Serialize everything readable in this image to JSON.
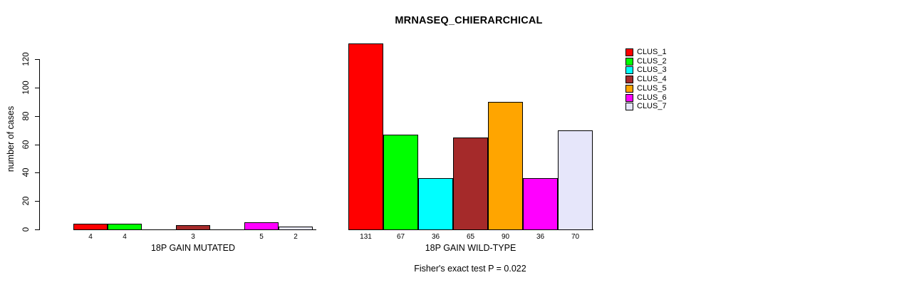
{
  "chart_data": {
    "type": "bar",
    "title": "MRNASEQ_CHIERARCHICAL",
    "ylabel": "number of cases",
    "ylim": [
      0,
      120
    ],
    "yticks": [
      0,
      20,
      40,
      60,
      80,
      100,
      120
    ],
    "grid": false,
    "legend_position": "right",
    "series": [
      "CLUS_1",
      "CLUS_2",
      "CLUS_3",
      "CLUS_4",
      "CLUS_5",
      "CLUS_6",
      "CLUS_7"
    ],
    "colors": [
      "#FF0000",
      "#00FF00",
      "#00FFFF",
      "#A52A2A",
      "#FFA500",
      "#FF00FF",
      "#E6E6FA"
    ],
    "groups": [
      {
        "label": "18P GAIN MUTATED",
        "values": [
          4,
          4,
          0,
          3,
          0,
          5,
          2
        ]
      },
      {
        "label": "18P GAIN WILD-TYPE",
        "values": [
          131,
          67,
          36,
          65,
          90,
          36,
          70
        ]
      }
    ],
    "visible_bar_value_labels": [
      [
        "4",
        "4",
        "3",
        "5",
        "2"
      ],
      [
        "131",
        "67",
        "36",
        "65",
        "90",
        "36",
        "70"
      ]
    ],
    "show_zero_value_labels": false,
    "caption": "Fisher's exact test P = 0.022"
  }
}
